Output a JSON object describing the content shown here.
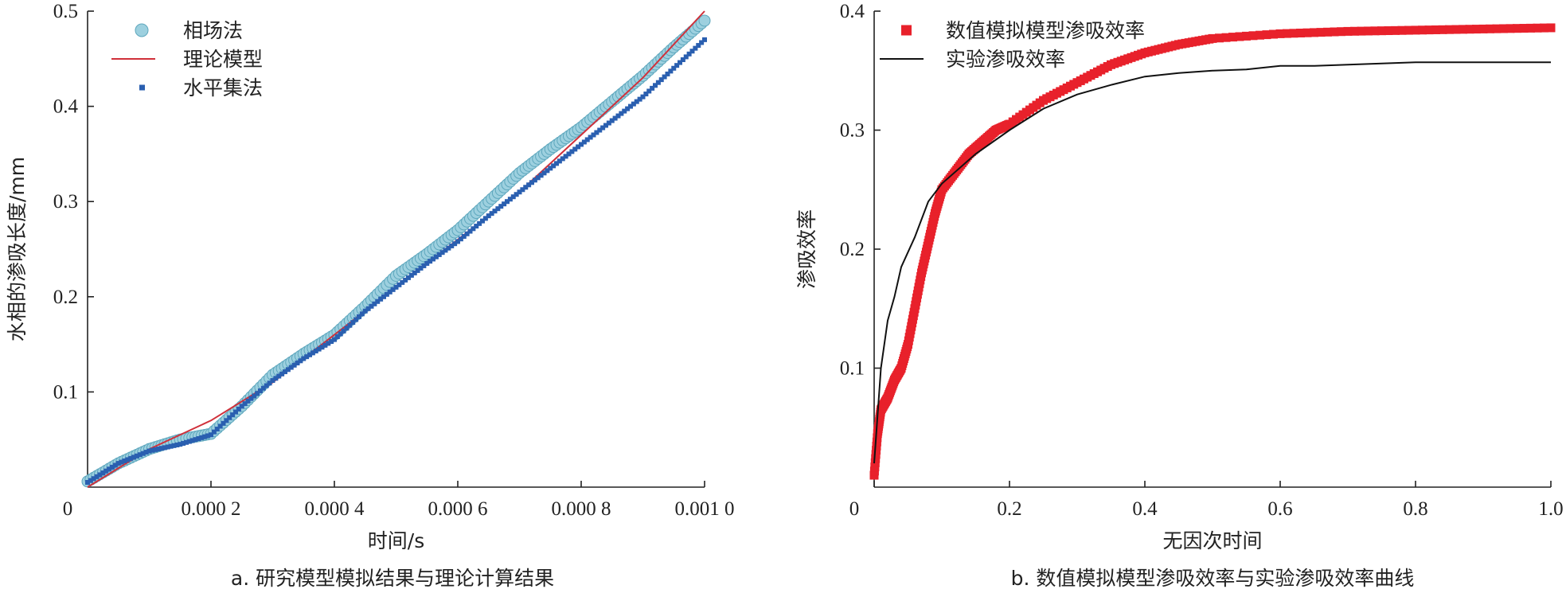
{
  "chart_data": [
    {
      "type": "line",
      "xlabel": "时间/s",
      "ylabel": "水相的渗吸长度/mm",
      "caption": "a. 研究模型模拟结果与理论计算结果",
      "xlim": [
        0,
        0.001
      ],
      "ylim": [
        0,
        0.5
      ],
      "xticks": [
        0,
        0.0002,
        0.0004,
        0.0006,
        0.0008,
        0.001
      ],
      "xtick_labels": [
        "0",
        "0.000 2",
        "0.000 4",
        "0.000 6",
        "0.000 8",
        "0.001 0"
      ],
      "yticks": [
        0.1,
        0.2,
        0.3,
        0.4,
        0.5
      ],
      "ytick_labels": [
        "0.1",
        "0.2",
        "0.3",
        "0.4",
        "0.5"
      ],
      "legend_position": "top-left",
      "series": [
        {
          "name": "相场法",
          "style": "circle-marker",
          "color": "#9dd0df",
          "x": [
            0.0,
            5e-05,
            0.0001,
            0.00015,
            0.0002,
            0.00025,
            0.0003,
            0.00035,
            0.0004,
            0.00045,
            0.0005,
            0.00055,
            0.0006,
            0.00065,
            0.0007,
            0.00075,
            0.0008,
            0.00085,
            0.0009,
            0.00095,
            0.001
          ],
          "y": [
            0.006,
            0.025,
            0.04,
            0.05,
            0.056,
            0.085,
            0.118,
            0.14,
            0.16,
            0.19,
            0.222,
            0.245,
            0.27,
            0.3,
            0.33,
            0.355,
            0.378,
            0.405,
            0.432,
            0.462,
            0.49
          ]
        },
        {
          "name": "理论模型",
          "style": "line",
          "color": "#d0303a",
          "x": [
            0.0,
            0.0001,
            0.0002,
            0.0003,
            0.0004,
            0.0005,
            0.0006,
            0.0007,
            0.0008,
            0.0009,
            0.001
          ],
          "y": [
            0.0,
            0.04,
            0.07,
            0.11,
            0.16,
            0.21,
            0.26,
            0.31,
            0.37,
            0.43,
            0.5
          ]
        },
        {
          "name": "水平集法",
          "style": "square-marker",
          "color": "#2a5fb0",
          "x": [
            0.0,
            5e-05,
            0.0001,
            0.00015,
            0.0002,
            0.00025,
            0.0003,
            0.00035,
            0.0004,
            0.00045,
            0.0005,
            0.00055,
            0.0006,
            0.00065,
            0.0007,
            0.00075,
            0.0008,
            0.00085,
            0.0009,
            0.00095,
            0.001
          ],
          "y": [
            0.005,
            0.025,
            0.038,
            0.045,
            0.055,
            0.085,
            0.112,
            0.135,
            0.155,
            0.185,
            0.21,
            0.235,
            0.258,
            0.285,
            0.31,
            0.335,
            0.36,
            0.385,
            0.41,
            0.44,
            0.47
          ]
        }
      ]
    },
    {
      "type": "line",
      "xlabel": "无因次时间",
      "ylabel": "渗吸效率",
      "caption": "b. 数值模拟模型渗吸效率与实验渗吸效率曲线",
      "xlim": [
        0,
        1
      ],
      "ylim": [
        0,
        0.4
      ],
      "xticks": [
        0,
        0.2,
        0.4,
        0.6,
        0.8,
        1.0
      ],
      "xtick_labels": [
        "0",
        "0.2",
        "0.4",
        "0.6",
        "0.8",
        "1.0"
      ],
      "yticks": [
        0.1,
        0.2,
        0.3,
        0.4
      ],
      "ytick_labels": [
        "0.1",
        "0.2",
        "0.3",
        "0.4"
      ],
      "legend_position": "top-left",
      "series": [
        {
          "name": "数值模拟模型渗吸效率",
          "style": "square-marker",
          "color": "#e8212b",
          "x": [
            0.0,
            0.005,
            0.01,
            0.02,
            0.03,
            0.04,
            0.05,
            0.06,
            0.07,
            0.08,
            0.09,
            0.1,
            0.12,
            0.14,
            0.16,
            0.18,
            0.2,
            0.25,
            0.3,
            0.35,
            0.4,
            0.45,
            0.5,
            0.6,
            0.7,
            0.8,
            0.9,
            1.0
          ],
          "y": [
            0.01,
            0.045,
            0.065,
            0.075,
            0.09,
            0.1,
            0.12,
            0.15,
            0.18,
            0.205,
            0.23,
            0.25,
            0.265,
            0.28,
            0.29,
            0.3,
            0.305,
            0.325,
            0.34,
            0.355,
            0.365,
            0.372,
            0.377,
            0.381,
            0.383,
            0.384,
            0.385,
            0.386
          ]
        },
        {
          "name": "实验渗吸效率",
          "style": "line",
          "color": "#111111",
          "x": [
            0.0,
            0.01,
            0.02,
            0.03,
            0.04,
            0.06,
            0.08,
            0.1,
            0.15,
            0.2,
            0.25,
            0.3,
            0.35,
            0.4,
            0.45,
            0.5,
            0.55,
            0.6,
            0.65,
            0.7,
            0.8,
            0.9,
            1.0
          ],
          "y": [
            0.02,
            0.1,
            0.14,
            0.16,
            0.185,
            0.21,
            0.24,
            0.255,
            0.28,
            0.3,
            0.318,
            0.33,
            0.338,
            0.345,
            0.348,
            0.35,
            0.351,
            0.354,
            0.354,
            0.355,
            0.357,
            0.357,
            0.357
          ]
        }
      ]
    }
  ]
}
